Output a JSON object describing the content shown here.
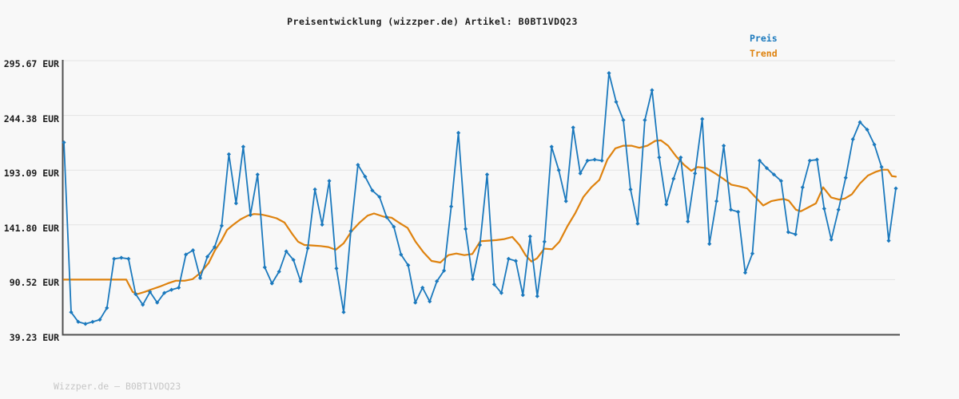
{
  "header": {
    "title": "Preisentwicklung (wizzper.de) Artikel: B0BT1VDQ23"
  },
  "watermark": "Wizzper.de — B0BT1VDQ23",
  "colors": {
    "price_blue": "#1b79bd",
    "trend_orange": "#de820e",
    "background": "#f8f8f8",
    "grid": "#e3e3e3",
    "axis": "#4f4f4f"
  },
  "chart_data": {
    "type": "line",
    "title": "Preisentwicklung (wizzper.de) Artikel: B0BT1VDQ23",
    "xlabel": "",
    "ylabel": "",
    "ylim": [
      39.23,
      295.67
    ],
    "grid": "horizontal",
    "legend_position": "top-right",
    "ytick_labels": [
      "295.67 EUR",
      "244.38 EUR",
      "193.09 EUR",
      "141.80 EUR",
      "90.52 EUR",
      "39.23 EUR"
    ],
    "ytick_values": [
      295.67,
      244.38,
      193.09,
      141.8,
      90.52,
      39.23
    ],
    "series": [
      {
        "name": "Preis",
        "color": "#1b79bd",
        "marker": "diamond",
        "values": [
          219,
          60,
          51,
          49,
          51,
          53,
          64,
          110,
          111,
          110,
          77,
          67,
          79,
          69,
          78,
          81,
          83,
          114,
          118,
          92,
          112,
          121,
          141,
          208,
          162,
          215,
          151,
          189,
          102,
          87,
          98,
          117,
          109,
          89,
          120,
          175,
          142,
          183,
          101,
          60,
          136,
          198,
          187,
          174,
          168,
          149,
          140,
          114,
          104,
          69,
          83,
          70,
          89,
          99,
          159,
          228,
          138,
          91,
          123,
          189,
          86,
          78,
          110,
          108,
          76,
          131,
          75,
          126,
          215,
          193,
          164,
          233,
          190,
          202,
          203,
          202,
          284,
          257,
          240,
          175,
          143,
          240,
          268,
          205,
          161,
          185,
          205,
          145,
          190,
          241,
          124,
          164,
          216,
          156,
          154,
          97,
          115,
          202,
          195,
          189,
          183,
          135,
          133,
          177,
          202,
          203,
          157,
          128,
          156,
          186,
          222,
          238,
          231,
          217,
          196,
          127,
          176
        ]
      },
      {
        "name": "Trend",
        "color": "#de820e",
        "marker": "none",
        "points": [
          [
            80,
            90.5
          ],
          [
            100,
            90.5
          ],
          [
            120,
            90.5
          ],
          [
            140,
            90.5
          ],
          [
            158,
            90.5
          ],
          [
            166,
            79
          ],
          [
            172,
            77
          ],
          [
            181,
            79
          ],
          [
            190,
            81.5
          ],
          [
            200,
            84
          ],
          [
            210,
            87
          ],
          [
            220,
            89.5
          ],
          [
            231,
            89.5
          ],
          [
            241,
            91
          ],
          [
            251,
            97
          ],
          [
            261,
            106
          ],
          [
            269,
            118
          ],
          [
            277,
            127
          ],
          [
            284,
            137
          ],
          [
            292,
            142
          ],
          [
            301,
            147
          ],
          [
            310,
            150.5
          ],
          [
            318,
            152
          ],
          [
            327,
            151.5
          ],
          [
            336,
            150
          ],
          [
            346,
            148
          ],
          [
            356,
            144
          ],
          [
            366,
            133
          ],
          [
            373,
            126
          ],
          [
            381,
            123
          ],
          [
            391,
            122.5
          ],
          [
            401,
            122
          ],
          [
            411,
            121
          ],
          [
            420,
            118.5
          ],
          [
            430,
            124.5
          ],
          [
            440,
            136
          ],
          [
            450,
            144
          ],
          [
            460,
            150.5
          ],
          [
            468,
            152.5
          ],
          [
            480,
            149.5
          ],
          [
            490,
            148.5
          ],
          [
            500,
            143.5
          ],
          [
            510,
            139
          ],
          [
            520,
            126
          ],
          [
            530,
            116
          ],
          [
            540,
            108
          ],
          [
            551,
            106.5
          ],
          [
            561,
            113.5
          ],
          [
            571,
            115
          ],
          [
            581,
            113.5
          ],
          [
            591,
            114.5
          ],
          [
            601,
            126.5
          ],
          [
            611,
            127
          ],
          [
            621,
            127.5
          ],
          [
            631,
            128.5
          ],
          [
            641,
            130.5
          ],
          [
            650,
            123
          ],
          [
            658,
            113
          ],
          [
            665,
            107.5
          ],
          [
            672,
            110.5
          ],
          [
            681,
            119.5
          ],
          [
            691,
            119
          ],
          [
            700,
            126
          ],
          [
            710,
            140.5
          ],
          [
            720,
            153
          ],
          [
            730,
            168
          ],
          [
            740,
            177
          ],
          [
            750,
            184
          ],
          [
            760,
            203
          ],
          [
            770,
            213.5
          ],
          [
            780,
            216
          ],
          [
            790,
            216
          ],
          [
            800,
            214
          ],
          [
            810,
            216
          ],
          [
            820,
            220.5
          ],
          [
            827,
            221
          ],
          [
            836,
            216
          ],
          [
            846,
            206
          ],
          [
            856,
            198
          ],
          [
            865,
            192.5
          ],
          [
            873,
            196
          ],
          [
            884,
            195
          ],
          [
            895,
            190
          ],
          [
            905,
            185
          ],
          [
            915,
            179.5
          ],
          [
            925,
            178
          ],
          [
            935,
            176
          ],
          [
            945,
            168
          ],
          [
            955,
            160
          ],
          [
            965,
            164
          ],
          [
            975,
            165.5
          ],
          [
            981,
            166
          ],
          [
            987,
            164.5
          ],
          [
            996,
            156
          ],
          [
            1002,
            154.5
          ],
          [
            1011,
            158
          ],
          [
            1021,
            162
          ],
          [
            1030,
            177
          ],
          [
            1040,
            167.5
          ],
          [
            1050,
            165.5
          ],
          [
            1057,
            166.5
          ],
          [
            1066,
            170.5
          ],
          [
            1076,
            180.5
          ],
          [
            1086,
            188
          ],
          [
            1096,
            191.5
          ],
          [
            1104,
            193.5
          ],
          [
            1111,
            193.5
          ],
          [
            1116,
            187.5
          ],
          [
            1121,
            187
          ]
        ]
      }
    ]
  }
}
